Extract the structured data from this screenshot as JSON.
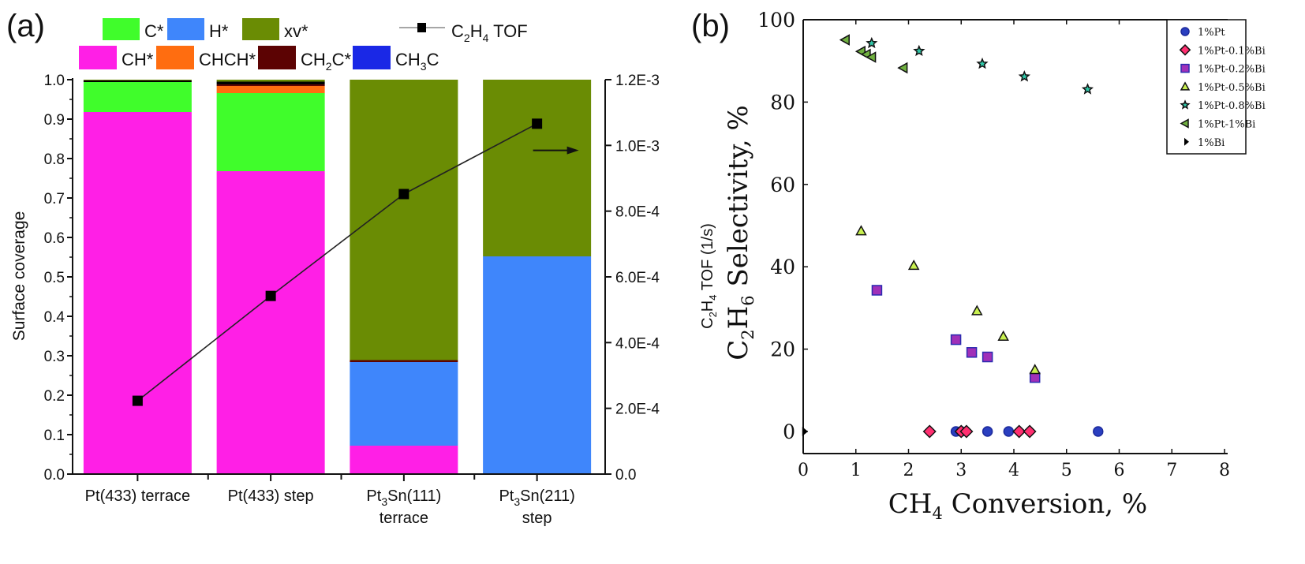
{
  "figure": {
    "panel_a_label": "(a)",
    "panel_b_label": "(b)"
  },
  "chart_data": [
    {
      "panel": "(a)",
      "type": "bar",
      "stacked": true,
      "title": "",
      "xlabel": "",
      "ylabel": "Surface coverage",
      "y2label": {
        "prefix": "C",
        "sub1": "2",
        "mid": "H",
        "sub2": "4",
        "suffix": " TOF (1/s)"
      },
      "ylim": [
        0,
        1.0
      ],
      "y2lim": [
        0,
        0.0012
      ],
      "yticks": [
        "0.0",
        "0.1",
        "0.2",
        "0.3",
        "0.4",
        "0.5",
        "0.6",
        "0.7",
        "0.8",
        "0.9",
        "1.0"
      ],
      "y2ticks": [
        "0.0",
        "2.0E-4",
        "4.0E-4",
        "6.0E-4",
        "8.0E-4",
        "1.0E-3",
        "1.2E-3"
      ],
      "categories": [
        {
          "line1": {
            "pre": "Pt(433) terrace",
            "sub": "",
            "post": ""
          },
          "line2": ""
        },
        {
          "line1": {
            "pre": "Pt(433) step",
            "sub": "",
            "post": ""
          },
          "line2": ""
        },
        {
          "line1": {
            "pre": "Pt",
            "sub": "3",
            "post": "Sn(111)"
          },
          "line2": "terrace"
        },
        {
          "line1": {
            "pre": "Pt",
            "sub": "3",
            "post": "Sn(211)"
          },
          "line2": "step"
        }
      ],
      "series": [
        {
          "name": "CH*",
          "color": "#ff1fe6",
          "values": [
            0.918,
            0.768,
            0.072,
            0.0
          ]
        },
        {
          "name": "H*",
          "color": "#3f86fb",
          "values": [
            0.0,
            0.0,
            0.212,
            0.552
          ]
        },
        {
          "name": "C*",
          "color": "#40fd2b",
          "values": [
            0.076,
            0.198,
            0.0,
            0.0
          ]
        },
        {
          "name": "CHCH*",
          "color": "#ff6d10",
          "values": [
            0.0,
            0.018,
            0.0,
            0.0
          ]
        },
        {
          "name": "CH2C*",
          "color": "#5c0303",
          "values": [
            0.0,
            0.004,
            0.005,
            0.0
          ]
        },
        {
          "name": "CH3C",
          "color": "#1a28e6",
          "values": [
            0.0,
            0.0,
            0.0,
            0.0
          ]
        },
        {
          "name": "black-top",
          "color": "#000000",
          "values": [
            0.004,
            0.007,
            0.0,
            0.0
          ]
        },
        {
          "name": "xv*",
          "color": "#6a8c04",
          "values": [
            0.002,
            0.005,
            0.711,
            0.448
          ]
        }
      ],
      "line_series": {
        "name": "C2H4 TOF",
        "axis": "right",
        "color": "#111111",
        "values": [
          0.000223,
          0.000542,
          0.000852,
          0.001066
        ]
      },
      "legend": {
        "placement": "top",
        "row1": [
          {
            "label": "C*",
            "color": "#40fd2b",
            "kind": "box"
          },
          {
            "label": "H*",
            "color": "#3f86fb",
            "kind": "box"
          },
          {
            "label": "xv*",
            "color": "#6a8c04",
            "kind": "box"
          },
          {
            "label": {
              "pre": "C",
              "s1": "2",
              "mid": "H",
              "s2": "4",
              "post": " TOF"
            },
            "color": "#111111",
            "kind": "line"
          }
        ],
        "row2": [
          {
            "label": {
              "pre": "CH*",
              "sub": "",
              "post": ""
            },
            "color": "#ff1fe6"
          },
          {
            "label": {
              "pre": "CHCH*",
              "sub": "",
              "post": ""
            },
            "color": "#ff6d10"
          },
          {
            "label": {
              "pre": "CH",
              "sub": "2",
              "post": "C*"
            },
            "color": "#5c0303"
          },
          {
            "label": {
              "pre": "CH",
              "sub": "3",
              "post": "C"
            },
            "color": "#1a28e6"
          }
        ]
      },
      "annotation": "arrow pointing right toward C2H4 TOF axis"
    },
    {
      "panel": "(b)",
      "type": "scatter",
      "title": "",
      "xlabel": {
        "pre": "CH",
        "sub": "4",
        "post": " Conversion, %"
      },
      "ylabel": {
        "pre": "C",
        "s1": "2",
        "mid": "H",
        "s2": "6",
        "post": " Selectivity, %"
      },
      "xlim": [
        0,
        8
      ],
      "ylim": [
        -5,
        100
      ],
      "xticks": [
        "0",
        "1",
        "2",
        "3",
        "4",
        "5",
        "6",
        "7",
        "8"
      ],
      "yticks": [
        "0",
        "20",
        "40",
        "60",
        "80",
        "100"
      ],
      "grid": false,
      "legend_placement": "top-right",
      "series": [
        {
          "name": "1%Pt",
          "marker": "circle",
          "color": "#2a3fc0",
          "points": [
            [
              2.9,
              0
            ],
            [
              3.0,
              0
            ],
            [
              3.5,
              0
            ],
            [
              3.9,
              0
            ],
            [
              5.6,
              0
            ]
          ]
        },
        {
          "name": "1%Pt-0.1%Bi",
          "marker": "diamond",
          "color": "#ff2f70",
          "points": [
            [
              2.4,
              0
            ],
            [
              3.0,
              0
            ],
            [
              3.1,
              0
            ],
            [
              4.1,
              0
            ],
            [
              4.3,
              0
            ]
          ]
        },
        {
          "name": "1%Pt-0.2%Bi",
          "marker": "square",
          "color": "#a030b8",
          "points": [
            [
              1.4,
              34.3
            ],
            [
              2.9,
              22.3
            ],
            [
              3.2,
              19.2
            ],
            [
              3.5,
              18.1
            ],
            [
              4.4,
              13.1
            ]
          ]
        },
        {
          "name": "1%Pt-0.5%Bi",
          "marker": "triangle-up",
          "color": "#c8f050",
          "points": [
            [
              1.1,
              48.7
            ],
            [
              2.1,
              40.3
            ],
            [
              3.3,
              29.3
            ],
            [
              3.8,
              23.1
            ],
            [
              4.4,
              15.0
            ]
          ]
        },
        {
          "name": "1%Pt-0.8%Bi",
          "marker": "star",
          "color": "#30c8a8",
          "points": [
            [
              1.3,
              94.3
            ],
            [
              2.2,
              92.4
            ],
            [
              3.4,
              89.3
            ],
            [
              4.2,
              86.2
            ],
            [
              5.4,
              83.1
            ]
          ]
        },
        {
          "name": "1%Pt-1%Bi",
          "marker": "triangle-left",
          "color": "#70b040",
          "points": [
            [
              0.8,
              95.1
            ],
            [
              1.1,
              92.3
            ],
            [
              1.2,
              91.6
            ],
            [
              1.3,
              90.9
            ],
            [
              1.9,
              88.3
            ]
          ]
        },
        {
          "name": "1%Bi",
          "marker": "triangle-right",
          "color": "#000000",
          "points": [
            [
              0.0,
              0
            ]
          ]
        }
      ]
    }
  ]
}
